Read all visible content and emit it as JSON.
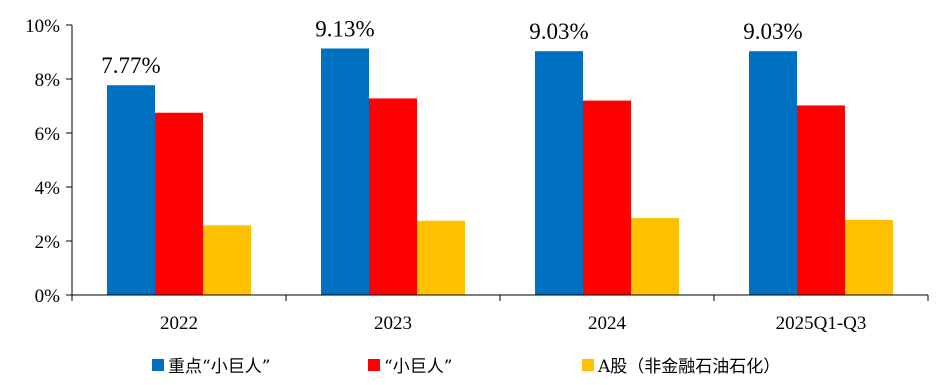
{
  "chart_data": {
    "type": "bar",
    "categories": [
      "2022",
      "2023",
      "2024",
      "2025Q1-Q3"
    ],
    "series": [
      {
        "name": "重点“小巨人”",
        "color": "#0070C0",
        "values": [
          7.77,
          9.13,
          9.03,
          9.03
        ],
        "data_labels": [
          "7.77%",
          "9.13%",
          "9.03%",
          "9.03%"
        ]
      },
      {
        "name": "“小巨人”",
        "color": "#FF0000",
        "values": [
          6.75,
          7.28,
          7.2,
          7.02
        ]
      },
      {
        "name": "A股（非金融石油石化）",
        "color": "#FFC000",
        "values": [
          2.58,
          2.75,
          2.85,
          2.78
        ]
      }
    ],
    "y_ticks": [
      {
        "value": 0,
        "label": "0%"
      },
      {
        "value": 2,
        "label": "2%"
      },
      {
        "value": 4,
        "label": "4%"
      },
      {
        "value": 6,
        "label": "6%"
      },
      {
        "value": 8,
        "label": "8%"
      },
      {
        "value": 10,
        "label": "10%"
      }
    ],
    "ylim": [
      0,
      10
    ],
    "grid": false,
    "legend_position": "bottom"
  }
}
